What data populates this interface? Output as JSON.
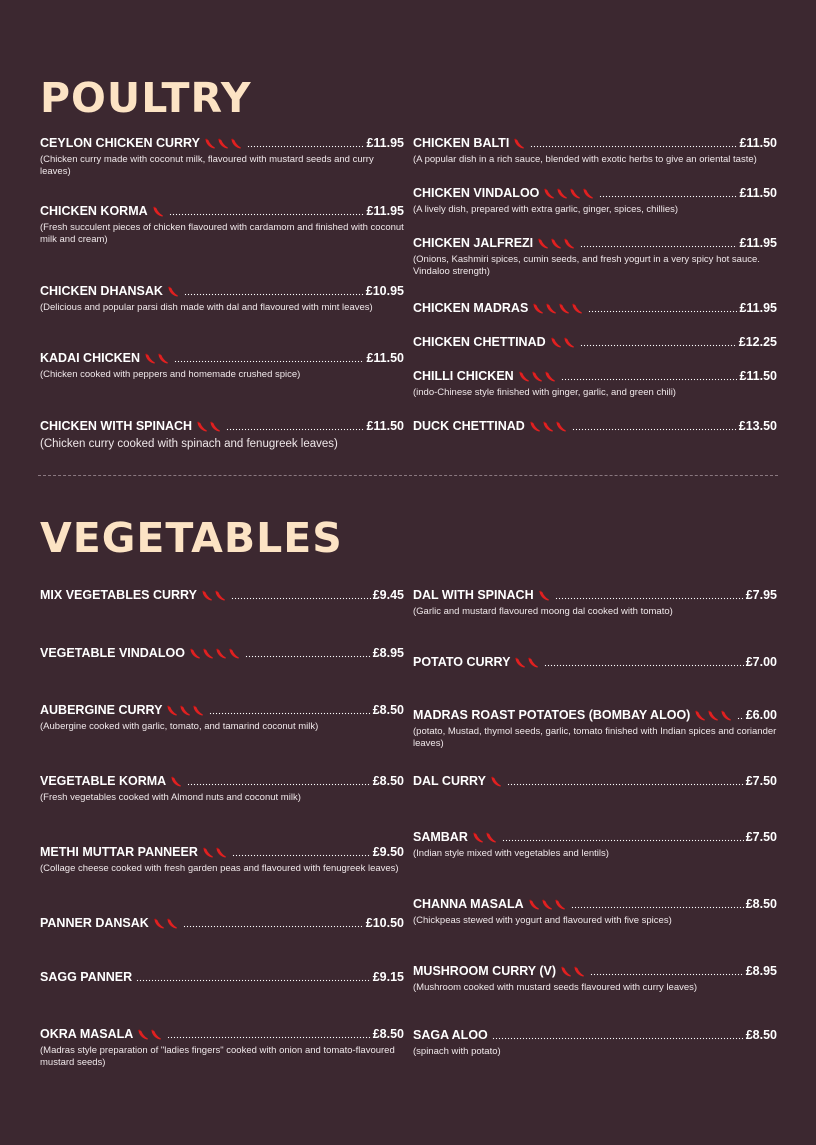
{
  "colors": {
    "background": "#3c2830",
    "heading": "#fce3c4",
    "chili": "#e02020",
    "text": "#ffffff"
  },
  "poultry": {
    "title": "POULTRY",
    "left": [
      {
        "name": "CEYLON CHICKEN CURRY",
        "chilis": 3,
        "price": "£11.95",
        "desc": "(Chicken curry made with coconut milk, flavoured with mustard seeds and curry leaves)"
      },
      {
        "name": "CHICKEN KORMA",
        "chilis": 1,
        "price": "£11.95",
        "desc": "(Fresh succulent pieces of chicken flavoured with cardamom and finished with coconut milk and cream)"
      },
      {
        "name": "CHICKEN DHANSAK",
        "chilis": 1,
        "price": "£10.95",
        "desc": "(Delicious and popular parsi dish made with dal and flavoured with mint leaves)"
      },
      {
        "name": "KADAI CHICKEN",
        "chilis": 2,
        "price": "£11.50",
        "desc": "(Chicken cooked with peppers and homemade crushed spice)"
      },
      {
        "name": "CHICKEN WITH SPINACH",
        "chilis": 2,
        "price": "£11.50",
        "desc": "(Chicken curry cooked with spinach and fenugreek leaves)"
      }
    ],
    "right": [
      {
        "name": "CHICKEN BALTI",
        "chilis": 1,
        "price": "£11.50",
        "desc": "(A popular dish in a rich sauce, blended with exotic herbs to give an oriental taste)"
      },
      {
        "name": "CHICKEN VINDALOO",
        "chilis": 4,
        "price": "£11.50",
        "desc": "(A lively dish, prepared with extra garlic, ginger, spices, chillies)"
      },
      {
        "name": "CHICKEN JALFREZI",
        "chilis": 3,
        "price": "£11.95",
        "desc": "(Onions, Kashmiri spices, cumin seeds, and fresh yogurt in a very spicy hot sauce. Vindaloo strength)"
      },
      {
        "name": "CHICKEN MADRAS",
        "chilis": 4,
        "price": "£11.95",
        "desc": ""
      },
      {
        "name": "CHICKEN CHETTINAD",
        "chilis": 2,
        "price": "£12.25",
        "desc": ""
      },
      {
        "name": "CHILLI CHICKEN",
        "chilis": 3,
        "price": "£11.50",
        "desc": "(indo-Chinese style finished with ginger, garlic, and green chili)"
      },
      {
        "name": "DUCK CHETTINAD",
        "chilis": 3,
        "price": "£13.50",
        "desc": ""
      }
    ]
  },
  "vegetables": {
    "title": "VEGETABLES",
    "left": [
      {
        "name": "MIX VEGETABLES CURRY",
        "chilis": 2,
        "price": "£9.45",
        "desc": ""
      },
      {
        "name": "VEGETABLE VINDALOO",
        "chilis": 4,
        "price": "£8.95",
        "desc": ""
      },
      {
        "name": "AUBERGINE CURRY",
        "chilis": 3,
        "price": "£8.50",
        "desc": "(Aubergine cooked with garlic, tomato, and tamarind coconut milk)"
      },
      {
        "name": "VEGETABLE KORMA",
        "chilis": 1,
        "price": "£8.50",
        "desc": "(Fresh vegetables cooked with Almond nuts and coconut milk)"
      },
      {
        "name": "METHI MUTTAR PANNEER",
        "chilis": 2,
        "price": "£9.50",
        "desc": "(Collage cheese cooked with fresh garden peas and flavoured with fenugreek leaves)"
      },
      {
        "name": "PANNER DANSAK",
        "chilis": 2,
        "price": "£10.50",
        "desc": ""
      },
      {
        "name": "SAGG PANNER",
        "chilis": 0,
        "price": "£9.15",
        "desc": ""
      },
      {
        "name": "OKRA MASALA",
        "chilis": 2,
        "price": "£8.50",
        "desc": "(Madras style preparation of \"ladies fingers\" cooked with onion and tomato-flavoured mustard seeds)"
      }
    ],
    "right": [
      {
        "name": "DAL WITH SPINACH",
        "chilis": 1,
        "price": "£7.95",
        "desc": "(Garlic and mustard flavoured moong dal cooked with tomato)"
      },
      {
        "name": "POTATO CURRY",
        "chilis": 2,
        "price": "£7.00",
        "desc": ""
      },
      {
        "name": "MADRAS ROAST POTATOES (BOMBAY ALOO)",
        "chilis": 3,
        "price": "£6.00",
        "desc": "(potato, Mustad, thymol seeds, garlic, tomato finished with Indian spices and coriander leaves)"
      },
      {
        "name": "DAL CURRY",
        "chilis": 1,
        "price": "£7.50",
        "desc": ""
      },
      {
        "name": "SAMBAR",
        "chilis": 2,
        "price": "£7.50",
        "desc": "(Indian style mixed with vegetables and lentils)"
      },
      {
        "name": "CHANNA MASALA",
        "chilis": 3,
        "price": "£8.50",
        "desc": "(Chickpeas stewed with yogurt and flavoured with five spices)"
      },
      {
        "name": "MUSHROOM CURRY (V)",
        "chilis": 2,
        "price": "£8.95",
        "desc": "(Mushroom cooked with mustard seeds flavoured with curry leaves)"
      },
      {
        "name": "SAGA ALOO",
        "chilis": 0,
        "price": "£8.50",
        "desc": "(spinach with potato)"
      }
    ]
  }
}
